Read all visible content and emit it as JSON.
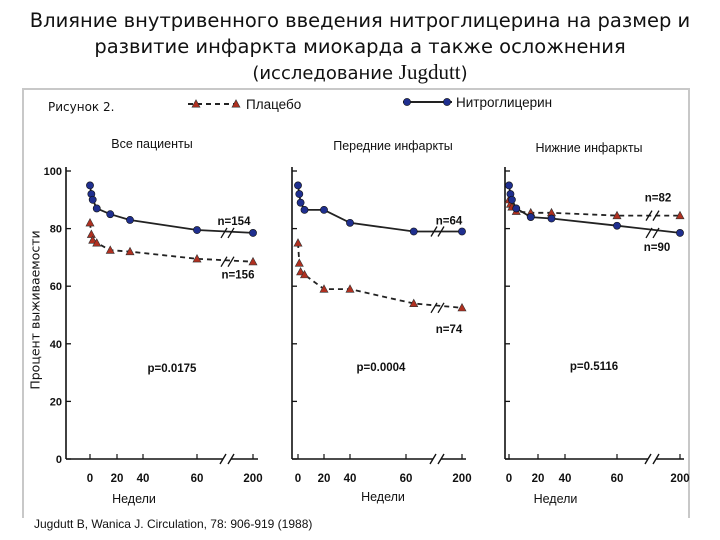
{
  "header": {
    "title_line1": "Влияние внутривенного введения нитроглицерина на размер и",
    "title_line2": "развитие инфаркта миокарда а также осложнения",
    "title_line3_prefix": "(исследование ",
    "title_line3_author": "Jugdutt",
    "title_line3_suffix": ")"
  },
  "figure_label": "Рисунок 2.",
  "source": "Jugdutt B, Wanica J. Circulation, 78: 906-919 (1988)",
  "chart_data": {
    "type": "line",
    "ylabel": "Процент выживаемости",
    "xlabel": "Недели",
    "ylim": [
      0,
      100
    ],
    "yticks": [
      "0",
      "20",
      "40",
      "60",
      "80",
      "100"
    ],
    "xticks": [
      "0",
      "20",
      "40",
      "60",
      "200"
    ],
    "legend": [
      {
        "name": "Плацебо",
        "style": "dashed",
        "marker": "triangle",
        "color": "#b03020"
      },
      {
        "name": "Нитроглицерин",
        "style": "solid",
        "marker": "circle",
        "color": "#1f2f8f"
      }
    ],
    "panels": [
      {
        "title": "Все пациенты",
        "pvalue": "p=0.0175",
        "series": [
          {
            "name": "Нитроглицерин",
            "label": "n=154",
            "x": [
              0,
              1,
              2,
              5,
              15,
              30,
              60,
              200
            ],
            "y": [
              95,
              92,
              90,
              87,
              85,
              83,
              79.5,
              78.5
            ]
          },
          {
            "name": "Плацебо",
            "label": "n=156",
            "x": [
              0,
              1,
              2,
              5,
              15,
              30,
              60,
              200
            ],
            "y": [
              82,
              78,
              76,
              75,
              72.5,
              72,
              69.5,
              68.5
            ]
          }
        ]
      },
      {
        "title": "Передние инфаркты",
        "pvalue": "p=0.0004",
        "series": [
          {
            "name": "Нитроглицерин",
            "label": "n=64",
            "x": [
              0,
              1,
              2,
              5,
              20,
              40,
              70,
              200
            ],
            "y": [
              95,
              92,
              89,
              86.5,
              86.5,
              82,
              79,
              79
            ]
          },
          {
            "name": "Плацебо",
            "label": "n=74",
            "x": [
              0,
              1,
              2,
              5,
              20,
              40,
              70,
              200
            ],
            "y": [
              75,
              68,
              65,
              64,
              59,
              59,
              54,
              52.5
            ]
          }
        ]
      },
      {
        "title": "Нижние инфаркты",
        "pvalue": "p=0.5116",
        "series": [
          {
            "name": "Плацебо",
            "label": "n=82",
            "x": [
              0,
              1,
              2,
              5,
              15,
              30,
              60,
              200
            ],
            "y": [
              90,
              88.5,
              87.5,
              86,
              85.5,
              85.5,
              84.5,
              84.5
            ]
          },
          {
            "name": "Нитроглицерин",
            "label": "n=90",
            "x": [
              0,
              1,
              2,
              5,
              15,
              30,
              60,
              200
            ],
            "y": [
              95,
              92,
              90,
              87,
              84,
              83.5,
              81,
              78.5
            ]
          }
        ]
      }
    ]
  }
}
